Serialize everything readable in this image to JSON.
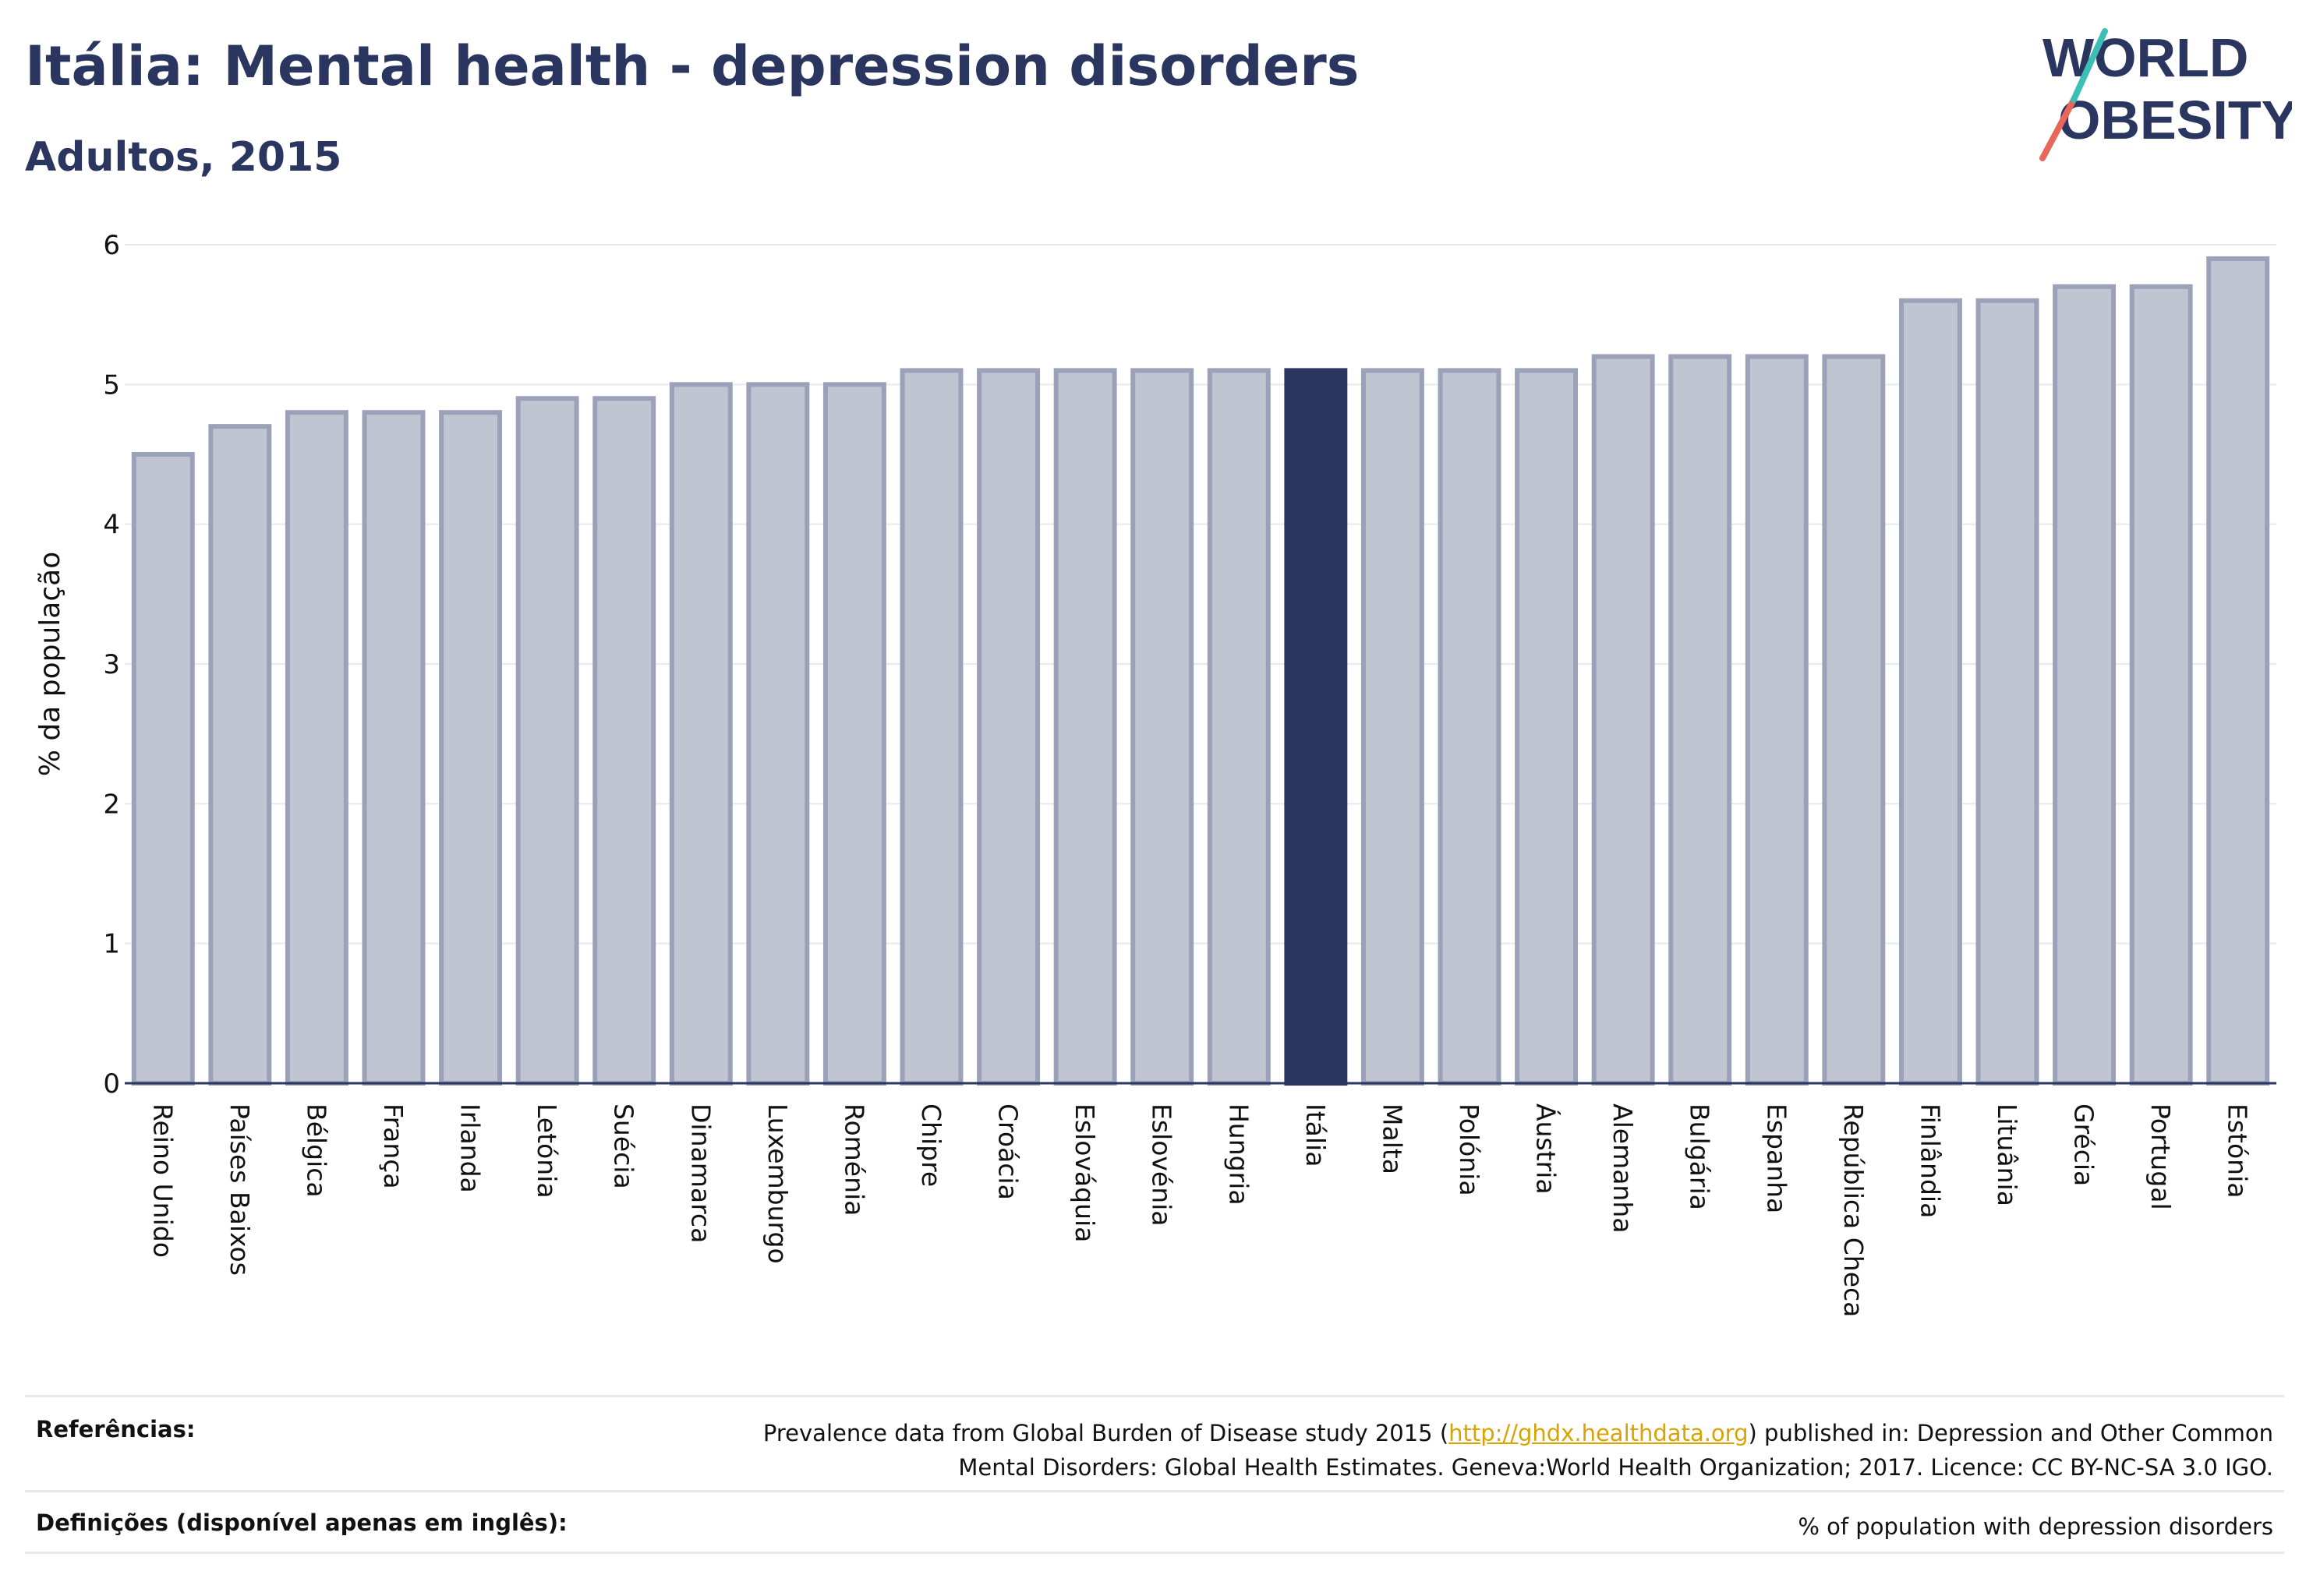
{
  "header": {
    "title": "Itália: Mental health - depression disorders",
    "subtitle": "Adultos, 2015"
  },
  "logo": {
    "line1": "WORLD",
    "line2": "OBESITY"
  },
  "colors": {
    "bar_fill": "#c1c4d1",
    "bar_stroke": "#9ba1b8",
    "highlight": "#2a3560",
    "grid": "#e8e9ee",
    "logo_slash_teal": "#3cbfb4",
    "logo_slash_red": "#e8675a"
  },
  "chart_data": {
    "type": "bar",
    "ylabel": "% da população",
    "xlabel": "",
    "ylim": [
      0,
      6
    ],
    "yticks": [
      0,
      1,
      2,
      3,
      4,
      5,
      6
    ],
    "grid": true,
    "highlight": "Itália",
    "categories": [
      "Reino Unido",
      "Países Baixos",
      "Bélgica",
      "França",
      "Irlanda",
      "Letónia",
      "Suécia",
      "Dinamarca",
      "Luxemburgo",
      "Roménia",
      "Chipre",
      "Croácia",
      "Eslováquia",
      "Eslovénia",
      "Hungria",
      "Itália",
      "Malta",
      "Polónia",
      "Áustria",
      "Alemanha",
      "Bulgária",
      "Espanha",
      "República Checa",
      "Finlândia",
      "Lituânia",
      "Grécia",
      "Portugal",
      "Estónia"
    ],
    "values": [
      4.5,
      4.7,
      4.8,
      4.8,
      4.8,
      4.9,
      4.9,
      5.0,
      5.0,
      5.0,
      5.1,
      5.1,
      5.1,
      5.1,
      5.1,
      5.1,
      5.1,
      5.1,
      5.1,
      5.2,
      5.2,
      5.2,
      5.2,
      5.6,
      5.6,
      5.7,
      5.7,
      5.9
    ]
  },
  "footer": {
    "references_label": "Referências:",
    "references_text_before": "Prevalence data from Global Burden of Disease study 2015 (",
    "references_link": "http://ghdx.healthdata.org",
    "references_text_after": ") published in: Depression and Other Common",
    "references_text_line2": "Mental Disorders: Global Health Estimates. Geneva:World Health Organization; 2017. Licence: CC BY-NC-SA 3.0 IGO.",
    "definitions_label": "Definições (disponível apenas em inglês):",
    "definitions_text": "% of population with depression disorders"
  }
}
